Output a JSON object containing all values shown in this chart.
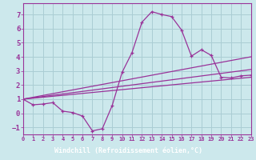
{
  "xlabel": "Windchill (Refroidissement éolien,°C)",
  "background_color": "#cce8ec",
  "grid_color": "#aacdd4",
  "line_color": "#993399",
  "xlabel_bg": "#7b3f8c",
  "xlabel_fg": "#ffffff",
  "xlim": [
    0,
    23
  ],
  "ylim": [
    -1.5,
    7.8
  ],
  "xticks": [
    0,
    1,
    2,
    3,
    4,
    5,
    6,
    7,
    8,
    9,
    10,
    11,
    12,
    13,
    14,
    15,
    16,
    17,
    18,
    19,
    20,
    21,
    22,
    23
  ],
  "yticks": [
    -1,
    0,
    1,
    2,
    3,
    4,
    5,
    6,
    7
  ],
  "curve1_x": [
    0,
    1,
    2,
    3,
    4,
    5,
    6,
    7,
    8,
    9,
    10,
    11,
    12,
    13,
    14,
    15,
    16,
    17,
    18,
    19,
    20,
    21,
    22,
    23
  ],
  "curve1_y": [
    1.0,
    0.6,
    0.65,
    0.75,
    0.15,
    0.05,
    -0.2,
    -1.25,
    -1.1,
    0.55,
    2.9,
    4.3,
    6.45,
    7.2,
    7.0,
    6.85,
    5.9,
    4.05,
    4.5,
    4.1,
    2.55,
    2.5,
    2.65,
    2.7
  ],
  "line1_x": [
    0,
    23
  ],
  "line1_y": [
    1.0,
    2.55
  ],
  "line2_x": [
    0,
    23
  ],
  "line2_y": [
    1.0,
    3.1
  ],
  "line3_x": [
    0,
    23
  ],
  "line3_y": [
    1.0,
    4.0
  ]
}
